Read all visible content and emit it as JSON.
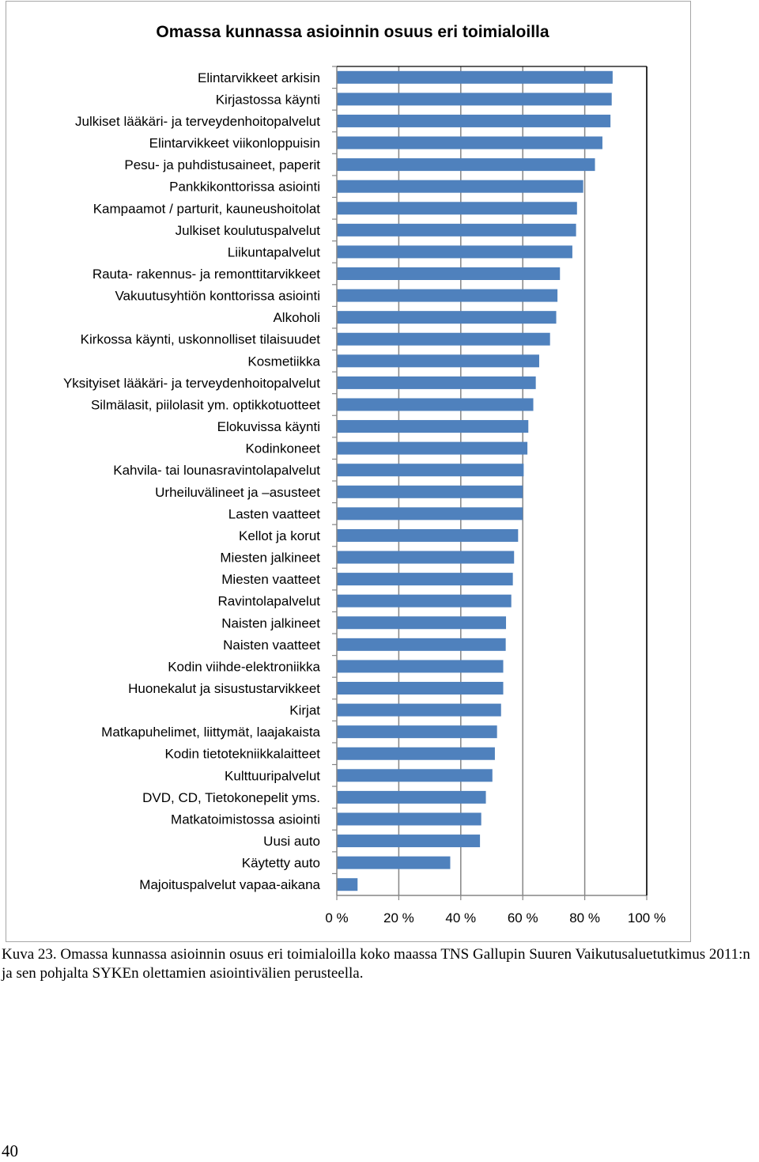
{
  "chart_data": {
    "type": "bar",
    "orientation": "horizontal",
    "title": "Omassa kunnassa asioinnin osuus eri toimialoilla",
    "categories": [
      "Elintarvikkeet arkisin",
      "Kirjastossa käynti",
      "Julkiset lääkäri- ja terveydenhoitopalvelut",
      "Elintarvikkeet viikonloppuisin",
      "Pesu- ja puhdistusaineet, paperit",
      "Pankkikonttorissa asiointi",
      "Kampaamot / parturit, kauneushoitolat",
      "Julkiset koulutuspalvelut",
      "Liikuntapalvelut",
      "Rauta- rakennus- ja remonttitarvikkeet",
      "Vakuutusyhtiön konttorissa asiointi",
      "Alkoholi",
      "Kirkossa käynti, uskonnolliset tilaisuudet",
      "Kosmetiikka",
      "Yksityiset lääkäri- ja terveydenhoitopalvelut",
      "Silmälasit, piilolasit ym. optikkotuotteet",
      "Elokuvissa käynti",
      "Kodinkoneet",
      "Kahvila- tai lounasravintolapalvelut",
      "Urheiluvälineet ja –asusteet",
      "Lasten vaatteet",
      "Kellot ja korut",
      "Miesten jalkineet",
      "Miesten vaatteet",
      "Ravintolapalvelut",
      "Naisten jalkineet",
      "Naisten vaatteet",
      "Kodin viihde-elektroniikka",
      "Huonekalut ja sisustustarvikkeet",
      "Kirjat",
      "Matkapuhelimet, liittymät, laajakaista",
      "Kodin tietotekniikkalaitteet",
      "Kulttuuripalvelut",
      "DVD, CD, Tietokonepelit yms.",
      "Matkatoimistossa asiointi",
      "Uusi auto",
      "Käytetty auto",
      "Majoituspalvelut vapaa-aikana"
    ],
    "values": [
      89,
      88.7,
      88.3,
      85.7,
      83.3,
      79.5,
      77.5,
      77.2,
      76,
      72,
      71.2,
      70.8,
      68.8,
      65.3,
      64.2,
      63.4,
      61.8,
      61.5,
      60.3,
      60,
      60,
      58.5,
      57.2,
      56.8,
      56.3,
      54.6,
      54.5,
      53.7,
      53.7,
      53,
      51.7,
      51,
      50.2,
      48.1,
      46.6,
      46.2,
      36.6,
      6.7
    ],
    "xlim": [
      0,
      100
    ],
    "xticks": [
      "0 %",
      "20 %",
      "40 %",
      "60 %",
      "80 %",
      "100 %"
    ],
    "xtick_values": [
      0,
      20,
      40,
      60,
      80,
      100
    ],
    "grid": true,
    "legend": "none",
    "bar_color": "#4f81bd"
  },
  "caption": "Kuva 23. Omassa kunnassa asioinnin osuus eri toimialoilla koko maassa TNS Gallupin Suuren Vaikutusaluetutkimus 2011:n ja sen pohjalta SYKEn olettamien asiointivälien perusteella.",
  "page_number": "40"
}
